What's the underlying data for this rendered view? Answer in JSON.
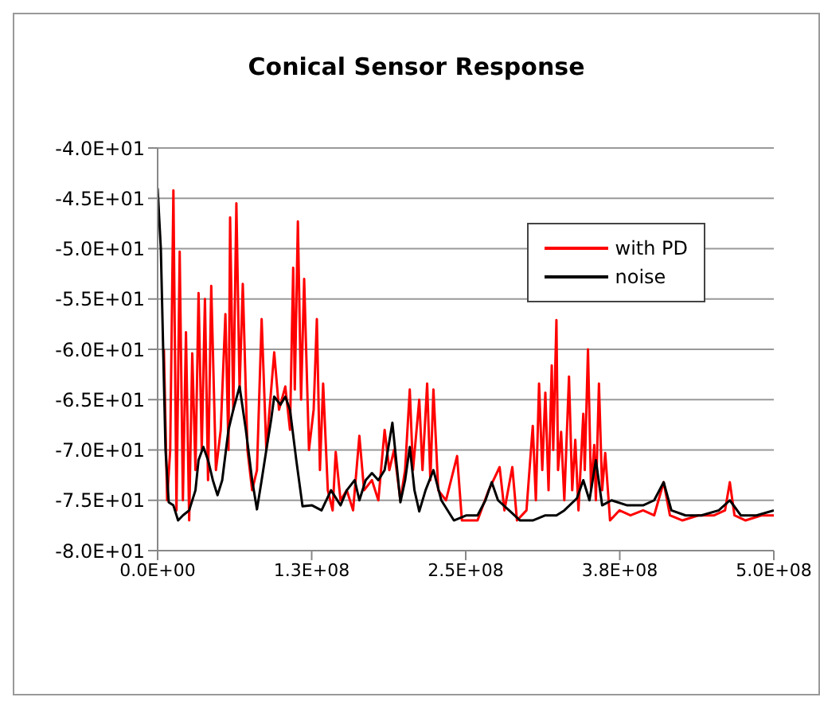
{
  "chart_data": {
    "type": "line",
    "title": "Conical Sensor Response",
    "xlim": [
      0,
      500000000
    ],
    "xticks": [
      {
        "value": 0,
        "label": "0.0E+00"
      },
      {
        "value": 125000000,
        "label": "1.3E+08"
      },
      {
        "value": 250000000,
        "label": "2.5E+08"
      },
      {
        "value": 375000000,
        "label": "3.8E+08"
      },
      {
        "value": 500000000,
        "label": "5.0E+08"
      }
    ],
    "ylim": [
      -80,
      -40
    ],
    "yticks": [
      {
        "value": -40,
        "label": "-4.0E+01"
      },
      {
        "value": -45,
        "label": "-4.5E+01"
      },
      {
        "value": -50,
        "label": "-5.0E+01"
      },
      {
        "value": -55,
        "label": "-5.5E+01"
      },
      {
        "value": -60,
        "label": "-6.0E+01"
      },
      {
        "value": -65,
        "label": "-6.5E+01"
      },
      {
        "value": -70,
        "label": "-7.0E+01"
      },
      {
        "value": -75,
        "label": "-7.5E+01"
      },
      {
        "value": -80,
        "label": "-8.0E+01"
      }
    ],
    "grid": "y",
    "legend": "top right",
    "marker": "none",
    "line_style": "solid",
    "series": [
      {
        "name": "with PD",
        "color": "#ff0000",
        "x": [
          5100000.0,
          7700000.0,
          10200000.0,
          12800000.0,
          15300000.0,
          17900000.0,
          20500000.0,
          23000000.0,
          25600000.0,
          28100000.0,
          30700000.0,
          33200000.0,
          35800000.0,
          38400000.0,
          40900000.0,
          43500000.0,
          47300000.0,
          51200000.0,
          55000000.0,
          57500000.0,
          58800000.0,
          61400000.0,
          63900000.0,
          66500000.0,
          69100000.0,
          72900000.0,
          76700000.0,
          80600000.0,
          84400000.0,
          88200000.0,
          90800000.0,
          94600000.0,
          98500000.0,
          103600000.0,
          107400000.0,
          110000000.0,
          111300000.0,
          113800000.0,
          116400000.0,
          118900000.0,
          122800000.0,
          126600000.0,
          129200000.0,
          131700000.0,
          134300000.0,
          138100000.0,
          142000000.0,
          144500000.0,
          148400000.0,
          153500000.0,
          158600000.0,
          163700000.0,
          167500000.0,
          173900000.0,
          179100000.0,
          184200000.0,
          188000000.0,
          191800000.0,
          197000000.0,
          200800000.0,
          204600000.0,
          207200000.0,
          212300000.0,
          214900000.0,
          218700000.0,
          221300000.0,
          223800000.0,
          227700000.0,
          234000000.0,
          243000000.0,
          246900000.0,
          259600000.0,
          268600000.0,
          277500000.0,
          281400000.0,
          287800000.0,
          291600000.0,
          299300000.0,
          304400000.0,
          306900000.0,
          309500000.0,
          312100000.0,
          314600000.0,
          317200000.0,
          319800000.0,
          321000000.0,
          323600000.0,
          324900000.0,
          327400000.0,
          330000000.0,
          333800000.0,
          336400000.0,
          338900000.0,
          341500000.0,
          345400000.0,
          346600000.0,
          349200000.0,
          351700000.0,
          354300000.0,
          355600000.0,
          358100000.0,
          360700000.0,
          363200000.0,
          367100000.0,
          374700000.0,
          383700000.0,
          393900000.0,
          402900000.0,
          410600000.0,
          415700000.0,
          425900000.0,
          438700000.0,
          451500000.0,
          460400000.0,
          464300000.0,
          468100000.0,
          477100000.0,
          489800000.0,
          500000000.0
        ],
        "values": [
          -60,
          -75,
          -70,
          -44.2,
          -76,
          -50.3,
          -75,
          -58.3,
          -77,
          -60.4,
          -72,
          -54.4,
          -70,
          -55,
          -73,
          -53.7,
          -72,
          -68,
          -56.5,
          -70,
          -46.9,
          -66,
          -45.5,
          -64,
          -53.5,
          -70,
          -74,
          -72,
          -57,
          -70,
          -66,
          -60.3,
          -66,
          -63.7,
          -68,
          -51.9,
          -64,
          -47.3,
          -65,
          -53,
          -70,
          -66,
          -57,
          -72,
          -63.4,
          -74,
          -76,
          -70.2,
          -75,
          -74,
          -76,
          -68.6,
          -74,
          -73,
          -75,
          -68,
          -72,
          -70,
          -75,
          -72,
          -64,
          -72,
          -65,
          -72,
          -63.4,
          -73,
          -64,
          -74,
          -75,
          -70.6,
          -77,
          -77,
          -74,
          -71.7,
          -76,
          -71.7,
          -77,
          -76,
          -67.6,
          -75,
          -63.4,
          -72,
          -64.3,
          -74,
          -61.6,
          -70,
          -57.1,
          -72,
          -68.2,
          -75,
          -62.7,
          -74,
          -69,
          -76,
          -66.4,
          -72,
          -60,
          -74,
          -69.5,
          -75,
          -63.4,
          -74,
          -70.3,
          -77,
          -76,
          -76.5,
          -76,
          -76.5,
          -73.2,
          -76.5,
          -77,
          -76.5,
          -76.5,
          -76,
          -73.2,
          -76.5,
          -77,
          -76.5,
          -76.5
        ]
      },
      {
        "name": "noise",
        "color": "#000000",
        "x": [
          0,
          2600000.0,
          6400000.0,
          9000000.0,
          12800000.0,
          16600000.0,
          20500000.0,
          25600000.0,
          30700000.0,
          33200000.0,
          37100000.0,
          40900000.0,
          44800000.0,
          48600000.0,
          52400000.0,
          57500000.0,
          61400000.0,
          66500000.0,
          71600000.0,
          76700000.0,
          80600000.0,
          84400000.0,
          88200000.0,
          92100000.0,
          94600000.0,
          99700000.0,
          103600000.0,
          107400000.0,
          112500000.0,
          117600000.0,
          125300000.0,
          133000000.0,
          140700000.0,
          148400000.0,
          153500000.0,
          159900000.0,
          163700000.0,
          168800000.0,
          173900000.0,
          179100000.0,
          184200000.0,
          190500000.0,
          194400000.0,
          197000000.0,
          200800000.0,
          204600000.0,
          208400000.0,
          212300000.0,
          217400000.0,
          223800000.0,
          230200000.0,
          240400000.0,
          250600000.0,
          259600000.0,
          266000000.0,
          271100000.0,
          276200000.0,
          285200000.0,
          294100000.0,
          304400000.0,
          314600000.0,
          323600000.0,
          330000000.0,
          340200000.0,
          345400000.0,
          350400000.0,
          355600000.0,
          360700000.0,
          368300000.0,
          381100000.0,
          393900000.0,
          402900000.0,
          410600000.0,
          416900000.0,
          428400000.0,
          441200000.0,
          455300000.0,
          464300000.0,
          473200000.0,
          486000000.0,
          500000000.0
        ],
        "values": [
          -44,
          -50,
          -70,
          -75.2,
          -75.5,
          -77,
          -76.5,
          -76,
          -74,
          -71,
          -69.7,
          -71,
          -73,
          -74.5,
          -73,
          -68,
          -66,
          -63.7,
          -68,
          -73,
          -75.9,
          -73,
          -70,
          -67,
          -64.7,
          -65.5,
          -64.7,
          -66,
          -71,
          -75.6,
          -75.5,
          -76,
          -74,
          -75.5,
          -74,
          -73,
          -75,
          -73,
          -72.3,
          -73,
          -72,
          -67.3,
          -72,
          -75.2,
          -73,
          -69.7,
          -74,
          -76.1,
          -74,
          -72,
          -75,
          -77,
          -76.5,
          -76.5,
          -75,
          -73.2,
          -75,
          -76,
          -77,
          -77,
          -76.5,
          -76.5,
          -76,
          -74.8,
          -73,
          -75,
          -71,
          -75.5,
          -75,
          -75.5,
          -75.5,
          -75,
          -73.2,
          -76,
          -76.5,
          -76.5,
          -76,
          -75,
          -76.5,
          -76.5,
          -76
        ]
      }
    ]
  }
}
